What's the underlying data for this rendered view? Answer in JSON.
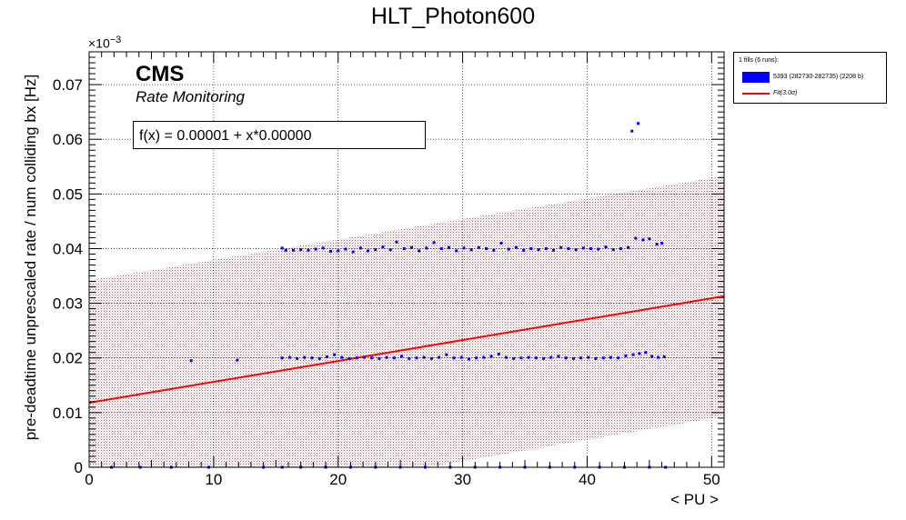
{
  "chart_data": {
    "type": "scatter",
    "title": "HLT_Photon600",
    "xlabel": "< PU >",
    "ylabel": "pre-deadtime unprescaled rate / num colliding bx [Hz]",
    "y_exponent_base": "×10",
    "y_exponent": "−3",
    "xlim": [
      0,
      51
    ],
    "ylim": [
      0,
      0.076
    ],
    "x_ticks": [
      "0",
      "10",
      "20",
      "30",
      "40",
      "50"
    ],
    "y_ticks": [
      "0",
      "0.01",
      "0.02",
      "0.03",
      "0.04",
      "0.05",
      "0.06",
      "0.07"
    ],
    "grid": true,
    "cms_label": "CMS",
    "cms_sublabel": "Rate Monitoring",
    "fit_text": "f(x) = 0.00001 + x*0.00000",
    "fit_line": {
      "x": [
        0,
        51
      ],
      "y": [
        0.0118,
        0.0313
      ],
      "color": "#ff0000"
    },
    "fit_band": {
      "upper": [
        0.0342,
        0.0533
      ],
      "lower": [
        -0.0106,
        0.0093
      ]
    },
    "series": [
      {
        "name": "5393 (282730-282735) (2208 b)",
        "color": "#0000ff",
        "points": [
          [
            1.8,
            0.0
          ],
          [
            4.1,
            0.0
          ],
          [
            6.6,
            0.0
          ],
          [
            8.2,
            0.0195
          ],
          [
            9.6,
            0.0
          ],
          [
            11.9,
            0.0196
          ],
          [
            14.0,
            0.0
          ],
          [
            15.5,
            0.0401
          ],
          [
            15.8,
            0.0397
          ],
          [
            16.4,
            0.0397
          ],
          [
            17.0,
            0.0398
          ],
          [
            17.6,
            0.0397
          ],
          [
            18.2,
            0.0399
          ],
          [
            18.8,
            0.0401
          ],
          [
            19.4,
            0.0395
          ],
          [
            20.0,
            0.0396
          ],
          [
            20.6,
            0.0399
          ],
          [
            21.2,
            0.0394
          ],
          [
            21.8,
            0.0401
          ],
          [
            22.4,
            0.0396
          ],
          [
            23.0,
            0.0398
          ],
          [
            23.6,
            0.0403
          ],
          [
            24.2,
            0.0398
          ],
          [
            24.7,
            0.0412
          ],
          [
            25.3,
            0.04
          ],
          [
            25.9,
            0.0402
          ],
          [
            26.5,
            0.0396
          ],
          [
            27.1,
            0.0401
          ],
          [
            27.7,
            0.0411
          ],
          [
            28.3,
            0.04
          ],
          [
            28.9,
            0.0402
          ],
          [
            29.5,
            0.0396
          ],
          [
            30.1,
            0.0401
          ],
          [
            30.7,
            0.0398
          ],
          [
            31.3,
            0.0402
          ],
          [
            31.9,
            0.04
          ],
          [
            32.5,
            0.0397
          ],
          [
            33.1,
            0.041
          ],
          [
            33.7,
            0.0399
          ],
          [
            34.3,
            0.0402
          ],
          [
            34.9,
            0.0397
          ],
          [
            35.5,
            0.04
          ],
          [
            36.1,
            0.0398
          ],
          [
            36.7,
            0.04
          ],
          [
            37.3,
            0.0397
          ],
          [
            37.9,
            0.0402
          ],
          [
            38.5,
            0.04
          ],
          [
            39.1,
            0.0398
          ],
          [
            39.7,
            0.0401
          ],
          [
            40.3,
            0.04
          ],
          [
            40.9,
            0.0399
          ],
          [
            41.5,
            0.0403
          ],
          [
            42.1,
            0.0398
          ],
          [
            42.7,
            0.04
          ],
          [
            43.3,
            0.0402
          ],
          [
            43.9,
            0.0419
          ],
          [
            44.5,
            0.0416
          ],
          [
            45.0,
            0.0418
          ],
          [
            45.6,
            0.0408
          ],
          [
            46.0,
            0.041
          ],
          [
            43.6,
            0.0615
          ],
          [
            44.1,
            0.0629
          ],
          [
            15.5,
            0.02
          ],
          [
            16.1,
            0.0201
          ],
          [
            16.7,
            0.0199
          ],
          [
            17.3,
            0.0201
          ],
          [
            17.9,
            0.02
          ],
          [
            18.5,
            0.0199
          ],
          [
            19.1,
            0.0202
          ],
          [
            19.7,
            0.0206
          ],
          [
            20.3,
            0.0201
          ],
          [
            20.9,
            0.0199
          ],
          [
            21.5,
            0.02
          ],
          [
            22.1,
            0.0201
          ],
          [
            22.7,
            0.02
          ],
          [
            23.3,
            0.0199
          ],
          [
            23.9,
            0.0201
          ],
          [
            24.5,
            0.02
          ],
          [
            25.1,
            0.0203
          ],
          [
            25.7,
            0.0199
          ],
          [
            26.3,
            0.02
          ],
          [
            26.9,
            0.0201
          ],
          [
            27.5,
            0.0199
          ],
          [
            28.1,
            0.0201
          ],
          [
            28.7,
            0.0206
          ],
          [
            29.3,
            0.02
          ],
          [
            29.9,
            0.0201
          ],
          [
            30.5,
            0.0198
          ],
          [
            31.1,
            0.02
          ],
          [
            31.7,
            0.0201
          ],
          [
            32.3,
            0.0203
          ],
          [
            32.9,
            0.0207
          ],
          [
            33.5,
            0.0201
          ],
          [
            34.1,
            0.0199
          ],
          [
            34.7,
            0.02
          ],
          [
            35.3,
            0.0201
          ],
          [
            35.9,
            0.02
          ],
          [
            36.5,
            0.0199
          ],
          [
            37.1,
            0.0201
          ],
          [
            37.7,
            0.0203
          ],
          [
            38.3,
            0.02
          ],
          [
            38.9,
            0.0199
          ],
          [
            39.5,
            0.02
          ],
          [
            40.1,
            0.0201
          ],
          [
            40.7,
            0.0199
          ],
          [
            41.3,
            0.02
          ],
          [
            41.9,
            0.0201
          ],
          [
            42.5,
            0.02
          ],
          [
            43.1,
            0.0204
          ],
          [
            43.7,
            0.0206
          ],
          [
            44.2,
            0.0208
          ],
          [
            44.7,
            0.021
          ],
          [
            45.2,
            0.0203
          ],
          [
            45.7,
            0.0201
          ],
          [
            46.2,
            0.0202
          ],
          [
            15.5,
            0.0
          ],
          [
            17.0,
            0.0
          ],
          [
            19.0,
            0.0
          ],
          [
            21.0,
            0.0
          ],
          [
            23.0,
            0.0
          ],
          [
            25.0,
            0.0
          ],
          [
            27.0,
            0.0
          ],
          [
            29.0,
            0.0
          ],
          [
            31.0,
            0.0
          ],
          [
            33.0,
            0.0
          ],
          [
            35.0,
            0.0
          ],
          [
            37.0,
            0.0
          ],
          [
            39.0,
            0.0
          ],
          [
            41.0,
            0.0
          ],
          [
            43.0,
            0.0
          ],
          [
            45.0,
            0.0
          ],
          [
            46.3,
            0.0
          ]
        ]
      }
    ],
    "legend": {
      "header": "1 fills (6 runs):",
      "entries": [
        {
          "label": "5393 (282730-282735) (2208 b)",
          "color": "#0000ff",
          "kind": "fill"
        },
        {
          "label": "Fit(3.0σ)",
          "color": "#ff0000",
          "kind": "line"
        }
      ],
      "placement": "top-right, outside plot"
    }
  }
}
